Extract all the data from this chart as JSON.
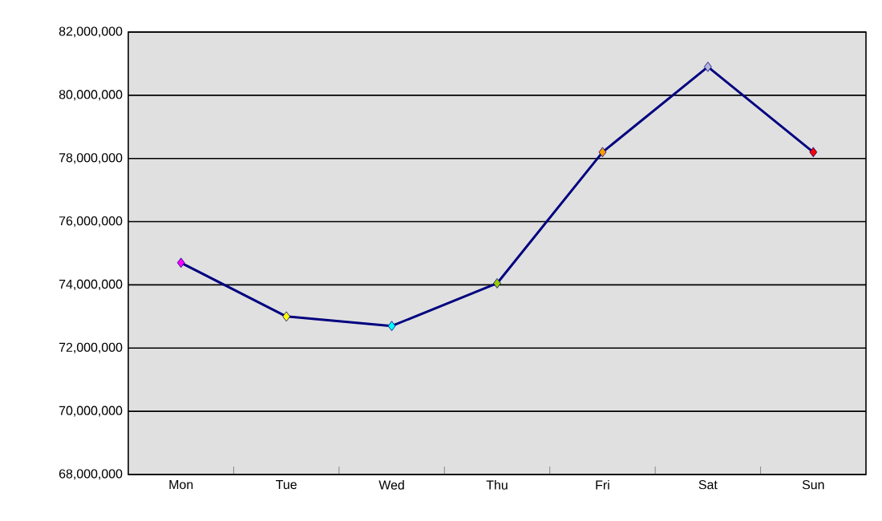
{
  "chart_data": {
    "type": "line",
    "categories": [
      "Mon",
      "Tue",
      "Wed",
      "Thu",
      "Fri",
      "Sat",
      "Sun"
    ],
    "series": [
      {
        "color": "#000080",
        "colors": [
          "#ff00ff",
          "#ffff00",
          "#00ffff",
          "#99cc00",
          "#ff9900",
          "#b4b4d8",
          "#ff0000"
        ],
        "values": [
          74700000,
          73000000,
          72700000,
          74050000,
          78200000,
          80900000,
          78200000
        ]
      }
    ],
    "ylim": [
      68000000,
      82000000
    ],
    "yticks": [
      {
        "value": 68000000,
        "label": "68,000,000"
      },
      {
        "value": 70000000,
        "label": "70,000,000"
      },
      {
        "value": 72000000,
        "label": "72,000,000"
      },
      {
        "value": 74000000,
        "label": "74,000,000"
      },
      {
        "value": 76000000,
        "label": "76,000,000"
      },
      {
        "value": 78000000,
        "label": "78,000,000"
      },
      {
        "value": 80000000,
        "label": "80,000,000"
      },
      {
        "value": 82000000,
        "label": "82,000,000"
      }
    ],
    "grid": "y",
    "marker": "diamond",
    "line_style": "solid"
  }
}
